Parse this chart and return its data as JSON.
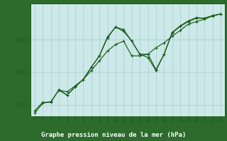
{
  "title": "Graphe pression niveau de la mer (hPa)",
  "bg_color": "#cce8e8",
  "grid_color": "#aacccc",
  "line_color": "#1a5c1a",
  "label_bg": "#2d6b2d",
  "label_fg": "#ffffff",
  "xlim": [
    -0.5,
    23.5
  ],
  "ylim": [
    1029.65,
    1033.1
  ],
  "yticks": [
    1030,
    1031,
    1032
  ],
  "xticks": [
    0,
    1,
    2,
    3,
    4,
    5,
    6,
    7,
    8,
    9,
    10,
    11,
    12,
    13,
    14,
    15,
    16,
    17,
    18,
    19,
    20,
    21,
    22,
    23
  ],
  "series": [
    [
      1029.75,
      1030.05,
      1030.1,
      1030.45,
      1030.4,
      1030.58,
      1030.78,
      1031.05,
      1031.35,
      1031.65,
      1031.85,
      1031.95,
      1031.5,
      1031.5,
      1031.55,
      1031.75,
      1031.9,
      1032.1,
      1032.28,
      1032.47,
      1032.55,
      1032.62,
      1032.72,
      1032.78
    ],
    [
      1029.82,
      1030.08,
      1030.08,
      1030.47,
      1030.3,
      1030.55,
      1030.78,
      1031.15,
      1031.5,
      1032.05,
      1032.38,
      1032.25,
      1031.95,
      1031.55,
      1031.55,
      1031.08,
      1031.55,
      1032.22,
      1032.42,
      1032.57,
      1032.67,
      1032.65,
      1032.73,
      1032.78
    ],
    [
      null,
      null,
      null,
      1030.45,
      1030.3,
      1030.55,
      1030.78,
      1031.15,
      1031.5,
      1032.08,
      1032.38,
      1032.3,
      1031.95,
      1031.55,
      1031.45,
      1031.05,
      1031.55,
      1032.2,
      1032.4,
      1032.55,
      1032.65,
      1032.65,
      1032.73,
      1032.78
    ]
  ]
}
